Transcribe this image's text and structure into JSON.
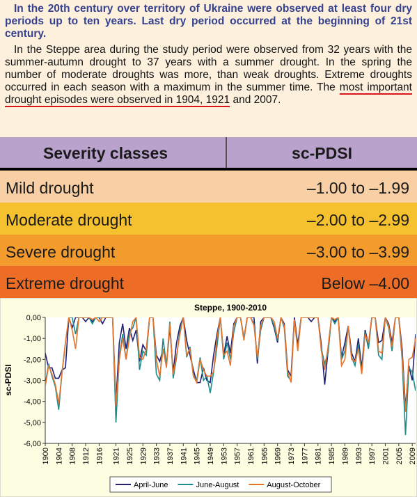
{
  "intro": {
    "heading": "In the 20th century over territory of Ukraine were observed at least four dry periods up to ten years. Last dry period occurred at the beginning of 21st century.",
    "paragraph": {
      "before": "In the Steppe area during the study period were observed from 32 years with the summer-autumn drought to 37 years with a summer drought. In the spring the number of moderate droughts was more, than weak droughts. Extreme droughts occurred in each season with a maximum in the summer time. The ",
      "highlight": "most important drought episodes were observed in 1904, 1921",
      "after": " and 2007."
    }
  },
  "table": {
    "header": [
      "Severity classes",
      "sc-PDSI"
    ],
    "rows": [
      [
        "Mild drought",
        "–1.00 to –1.99"
      ],
      [
        "Moderate drought",
        "–2.00 to –2.99"
      ],
      [
        "Severe drought",
        "–3.00 to –3.99"
      ],
      [
        "Extreme drought",
        "Below –4.00"
      ]
    ]
  },
  "chart_data": {
    "type": "line",
    "title": "Steppe, 1900-2010",
    "y_label": "sc-PDSI",
    "x": [
      1900,
      1901,
      1902,
      1903,
      1904,
      1905,
      1906,
      1907,
      1908,
      1909,
      1910,
      1911,
      1912,
      1913,
      1914,
      1915,
      1916,
      1917,
      1918,
      1919,
      1920,
      1921,
      1922,
      1923,
      1924,
      1925,
      1926,
      1927,
      1928,
      1929,
      1930,
      1931,
      1932,
      1933,
      1934,
      1935,
      1936,
      1937,
      1938,
      1939,
      1940,
      1941,
      1942,
      1943,
      1944,
      1945,
      1946,
      1947,
      1948,
      1949,
      1950,
      1951,
      1952,
      1953,
      1954,
      1955,
      1956,
      1957,
      1958,
      1959,
      1960,
      1961,
      1962,
      1963,
      1964,
      1965,
      1966,
      1967,
      1968,
      1969,
      1970,
      1971,
      1972,
      1973,
      1974,
      1975,
      1976,
      1977,
      1978,
      1979,
      1980,
      1981,
      1982,
      1983,
      1984,
      1985,
      1986,
      1987,
      1988,
      1989,
      1990,
      1991,
      1992,
      1993,
      1994,
      1995,
      1996,
      1997,
      1998,
      1999,
      2000,
      2001,
      2002,
      2003,
      2004,
      2005,
      2006,
      2007,
      2008,
      2009,
      2010
    ],
    "xlim": [
      1900,
      2010
    ],
    "xticks": [
      1900,
      1904,
      1908,
      1912,
      1916,
      1921,
      1925,
      1929,
      1933,
      1937,
      1941,
      1945,
      1949,
      1953,
      1957,
      1961,
      1965,
      1969,
      1973,
      1977,
      1981,
      1985,
      1989,
      1993,
      1997,
      2001,
      2005,
      2009
    ],
    "ylim": [
      -6,
      0
    ],
    "yticks": [
      {
        "value": 0,
        "label": "0,00"
      },
      {
        "value": -1,
        "label": "-1,00"
      },
      {
        "value": -2,
        "label": "-2,00"
      },
      {
        "value": -3,
        "label": "-3,00"
      },
      {
        "value": -4,
        "label": "-4,00"
      },
      {
        "value": -5,
        "label": "-5,00"
      },
      {
        "value": -6,
        "label": "-6,00"
      }
    ],
    "series": [
      {
        "name": "April-June",
        "color": "#1f1f78",
        "values": [
          -1.7,
          -2.4,
          -2.4,
          -2.9,
          -2.9,
          -2.5,
          -2.4,
          0,
          -0.5,
          0,
          0,
          0,
          -0.2,
          0,
          -0.2,
          0,
          0,
          -0.3,
          0,
          0,
          0,
          -4.0,
          -1.2,
          -0.3,
          -1.5,
          -0.5,
          -1.1,
          -0.6,
          -2.1,
          -1.3,
          -1.6,
          0,
          0,
          -1.8,
          -2.1,
          -1.5,
          -2.3,
          -0.5,
          -2.6,
          -1.2,
          -0.4,
          0,
          -1.1,
          -1.8,
          -2.5,
          -3.1,
          -3.1,
          -2.4,
          -3.0,
          -3.1,
          -1.8,
          -0.8,
          0,
          -1.8,
          -0.9,
          -1.7,
          -0.3,
          0,
          0,
          -1.0,
          0,
          0,
          0,
          -2.2,
          -0.2,
          0,
          0,
          0,
          -0.5,
          -1.2,
          0,
          -0.3,
          -2.5,
          -2.8,
          0,
          -1.3,
          0,
          0,
          0,
          -0.2,
          0,
          0,
          -1.3,
          -3.2,
          -1.6,
          0,
          -0.2,
          0,
          -1.9,
          -1.2,
          -0.4,
          -1.7,
          -2.1,
          -1.0,
          -2.4,
          -0.6,
          -1.3,
          0,
          0,
          -1.2,
          -1.1,
          0,
          -0.3,
          -1.2,
          0,
          0,
          -1.5,
          -4.3,
          -2.3,
          -3.0,
          -0.8
        ]
      },
      {
        "name": "June-August",
        "color": "#1a8c8c",
        "values": [
          -3.2,
          -2.2,
          -2.8,
          -3.3,
          -4.4,
          -2.6,
          -1.2,
          0,
          0,
          -0.8,
          0,
          0,
          0,
          0,
          -0.3,
          0,
          0,
          0,
          0,
          0,
          0,
          -5.0,
          -1.9,
          -0.8,
          -2.0,
          -0.7,
          -0.5,
          0,
          -2.5,
          -1.6,
          -1.8,
          0,
          0,
          -2.7,
          -3.0,
          -1.0,
          -2.3,
          -0.2,
          -2.9,
          -1.9,
          -0.6,
          0,
          -1.9,
          -1.4,
          -2.8,
          -3.0,
          -1.9,
          -3.0,
          -2.8,
          -3.6,
          -2.6,
          -1.4,
          0,
          -2.0,
          -1.2,
          -2.0,
          -0.7,
          0,
          0,
          -1.0,
          0,
          0,
          -0.3,
          -2.0,
          -0.6,
          0,
          0,
          0,
          -0.4,
          -1.1,
          0,
          -0.5,
          -2.8,
          -3.0,
          -0.1,
          -1.5,
          0,
          0,
          0,
          0,
          0,
          0,
          -1.5,
          -2.2,
          -1.7,
          0,
          -0.3,
          0,
          -2.0,
          -1.6,
          -0.5,
          -1.9,
          -2.3,
          -1.3,
          -2.6,
          -0.7,
          -1.5,
          0,
          0,
          -1.8,
          -2.0,
          0,
          -0.5,
          -1.6,
          0,
          0,
          -2.0,
          -5.6,
          -2.4,
          -2.6,
          -3.5
        ]
      },
      {
        "name": "August-October",
        "color": "#e8742a",
        "values": [
          -3.3,
          -2.3,
          -2.7,
          -3.2,
          -4.1,
          -2.6,
          -1.2,
          0,
          -0.6,
          -1.5,
          0,
          0,
          0,
          0,
          -0.1,
          0,
          -0.2,
          0,
          0,
          0,
          0,
          -4.2,
          -2.0,
          -1.0,
          -2.0,
          -1.0,
          -0.2,
          0,
          -1.9,
          -2.0,
          -1.5,
          0,
          0,
          -2.0,
          -2.8,
          -1.5,
          -2.4,
          -0.3,
          -2.7,
          -1.8,
          -0.8,
          0,
          -1.8,
          -1.5,
          -2.8,
          -3.1,
          -2.0,
          -2.5,
          -2.8,
          -2.8,
          -2.6,
          -1.0,
          0,
          -1.8,
          -1.6,
          -2.3,
          -0.4,
          0,
          0,
          -1.1,
          0,
          0,
          -0.4,
          -1.9,
          -0.4,
          0,
          0,
          0,
          -0.2,
          -1.0,
          0,
          -0.4,
          -2.6,
          -3.1,
          -0.1,
          -1.6,
          0,
          0,
          0,
          0,
          0,
          0,
          -1.6,
          -2.5,
          -1.4,
          0,
          -0.1,
          0,
          -2.3,
          -2.0,
          -0.4,
          -2.0,
          -2.1,
          -1.5,
          -2.7,
          -0.8,
          -1.2,
          0,
          0,
          -1.6,
          -1.7,
          0,
          -0.4,
          -1.4,
          0,
          0,
          -1.8,
          -4.5,
          -2.0,
          -1.9,
          -1.0
        ]
      }
    ],
    "grid": false
  }
}
